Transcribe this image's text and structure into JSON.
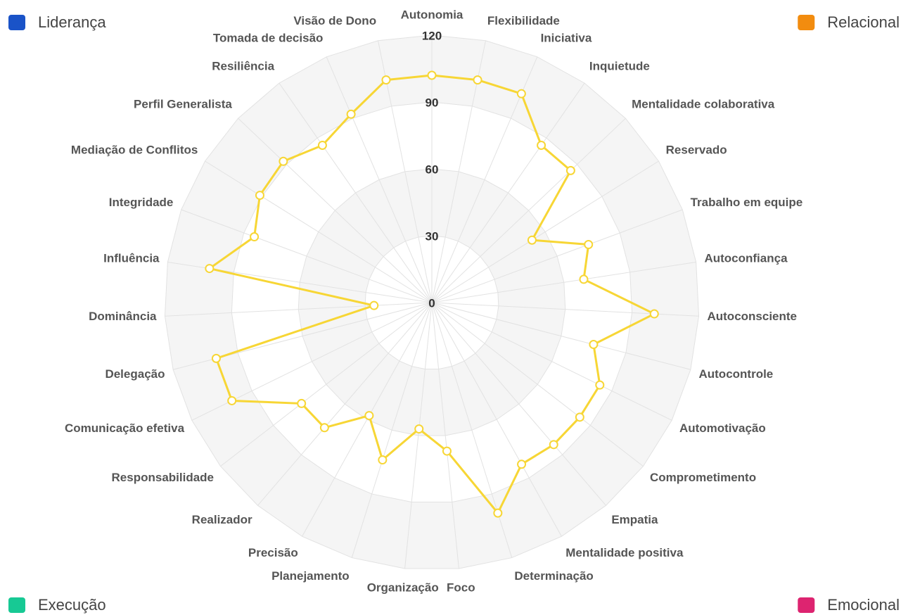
{
  "chart_data": {
    "type": "radar",
    "categories": [
      "Autonomia",
      "Flexibilidade",
      "Iniciativa",
      "Inquietude",
      "Mentalidade colaborativa",
      "Reservado",
      "Trabalho em equipe",
      "Autoconfiança",
      "Autoconsciente",
      "Autocontrole",
      "Automotivação",
      "Comprometimento",
      "Empatia",
      "Mentalidade positiva",
      "Determinação",
      "Foco",
      "Organização",
      "Planejamento",
      "Precisão",
      "Realizador",
      "Responsabilidade",
      "Comunicação efetiva",
      "Delegação",
      "Dominância",
      "Influência",
      "Integridade",
      "Mediação de Conflitos",
      "Perfil Generalista",
      "Resiliência",
      "Tomada de decisão",
      "Visão de Dono"
    ],
    "values": [
      102,
      102,
      102,
      86,
      86,
      53,
      75,
      69,
      100,
      75,
      84,
      84,
      84,
      83,
      99,
      67,
      57,
      74,
      58,
      74,
      74,
      100,
      100,
      26,
      101,
      85,
      91,
      92,
      86,
      92,
      102
    ],
    "color": "#f7d635",
    "ylim": [
      0,
      120
    ],
    "yticks": [
      0,
      30,
      60,
      90,
      120
    ],
    "legend": [
      {
        "name": "Liderança",
        "color": "#1a53c8"
      },
      {
        "name": "Relacional",
        "color": "#f28c0f"
      },
      {
        "name": "Execução",
        "color": "#17c994"
      },
      {
        "name": "Emocional",
        "color": "#dd2470"
      }
    ]
  }
}
